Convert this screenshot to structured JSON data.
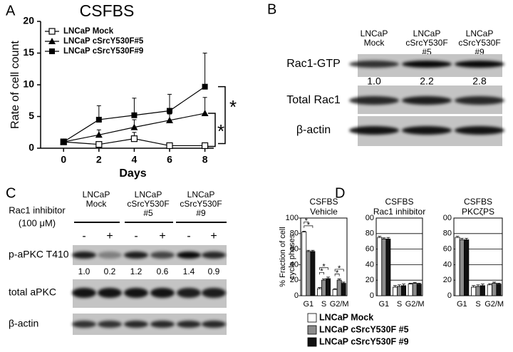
{
  "chart_data": [
    {
      "type": "line",
      "panel": "A",
      "title": "CSFBS",
      "xlabel": "Days",
      "ylabel": "Rate of cell count",
      "x": [
        0,
        2,
        4,
        6,
        8
      ],
      "xlim": [
        -1.3,
        8.5
      ],
      "xticks": [
        0,
        2,
        4,
        6,
        8
      ],
      "ylim": [
        0,
        20
      ],
      "yticks": [
        0,
        5,
        10,
        15,
        20
      ],
      "legend": "upper left",
      "series": [
        {
          "name": "LNCaP Mock",
          "color": "#000000",
          "marker": "open-square",
          "values": [
            1,
            0.6,
            1.5,
            0.4,
            0.4
          ],
          "errors": [
            0.1,
            0.3,
            1.0,
            0.2,
            0.2
          ]
        },
        {
          "name": "LNCaP cSrcY530F#5",
          "color": "#000000",
          "marker": "triangle",
          "values": [
            1,
            2.1,
            3.3,
            4.4,
            5.5
          ],
          "errors": [
            0.2,
            0.8,
            1.2,
            1.0,
            2.5
          ]
        },
        {
          "name": "LNCaP cSrcY530F#9",
          "color": "#000000",
          "marker": "filled-square",
          "values": [
            1,
            4.5,
            5.2,
            5.9,
            9.7
          ],
          "errors": [
            0.2,
            2.2,
            2.7,
            2.6,
            5.3
          ]
        }
      ],
      "annotations": [
        "*",
        "*"
      ]
    },
    {
      "type": "bar",
      "panel": "D",
      "title": "CSFBS",
      "subtitle": "Vehicle",
      "ylabel": [
        "% Fraction of cell",
        "cycle phases"
      ],
      "categories": [
        "G1",
        "S",
        "G2/M"
      ],
      "ylim": [
        0,
        100
      ],
      "yticks": [
        0,
        20,
        40,
        60,
        80,
        100
      ],
      "grid": false,
      "legend": "below",
      "series": [
        {
          "name": "LNCaP Mock",
          "color": "#ffffff",
          "values": [
            82,
            9,
            8
          ],
          "errors": [
            1,
            1.5,
            1
          ]
        },
        {
          "name": "LNCaP cSrcY530F #5",
          "color": "#8c8c8c",
          "values": [
            57,
            20,
            20
          ],
          "errors": [
            1.5,
            1.5,
            1.5
          ]
        },
        {
          "name": "LNCaP cSrcY530F #9",
          "color": "#111111",
          "values": [
            57,
            22,
            16
          ],
          "errors": [
            1.5,
            2,
            1.5
          ]
        }
      ],
      "annotations": [
        "*",
        "*",
        "*",
        "*",
        "*",
        "*"
      ]
    },
    {
      "type": "bar",
      "title": "CSFBS",
      "subtitle": "Rac1 inhibitor",
      "categories": [
        "G1",
        "S",
        "G2/M"
      ],
      "ylim": [
        0,
        100
      ],
      "yticks": [
        0,
        20,
        40,
        60,
        80,
        {
          "value": 100,
          "label": "00"
        }
      ],
      "grid": true,
      "series": [
        {
          "color": "#ffffff",
          "values": [
            75,
            11,
            15
          ],
          "errors": [
            1.5,
            2,
            1
          ]
        },
        {
          "color": "#8c8c8c",
          "values": [
            73,
            12,
            16
          ],
          "errors": [
            1.5,
            2,
            1
          ]
        },
        {
          "color": "#111111",
          "values": [
            73,
            13,
            15
          ],
          "errors": [
            2,
            2,
            1
          ]
        }
      ]
    },
    {
      "type": "bar",
      "title": "CSFBS",
      "subtitle": "PKCζPS",
      "categories": [
        "G1",
        "S",
        "G2/M"
      ],
      "ylim": [
        0,
        100
      ],
      "yticks": [
        0,
        20,
        40,
        60,
        80,
        {
          "value": 100,
          "label": "00"
        }
      ],
      "grid": true,
      "series": [
        {
          "color": "#ffffff",
          "values": [
            75,
            11,
            14
          ],
          "errors": [
            1.5,
            2,
            1.5
          ]
        },
        {
          "color": "#8c8c8c",
          "values": [
            72,
            12,
            16
          ],
          "errors": [
            2,
            2,
            1.5
          ]
        },
        {
          "color": "#111111",
          "values": [
            72,
            13,
            15
          ],
          "errors": [
            2,
            2,
            1
          ]
        }
      ]
    }
  ],
  "blots": [
    {
      "panel": "B",
      "columns": [
        [
          "LNCaP",
          "Mock"
        ],
        [
          "LNCaP",
          "cSrcY530F",
          "#5"
        ],
        [
          "LNCaP",
          "cSrcY530F",
          "#9"
        ]
      ],
      "rows": [
        "Rac1-GTP",
        "Total Rac1",
        "β-actin"
      ],
      "quantification": [
        "1.0",
        "2.2",
        "2.8"
      ]
    },
    {
      "panel": "C",
      "columns": [
        [
          "LNCaP",
          "Mock"
        ],
        [
          "LNCaP",
          "cSrcY530F",
          "#5"
        ],
        [
          "LNCaP",
          "cSrcY530F",
          "#9"
        ]
      ],
      "treatment": [
        "Rac1 inhibitor",
        "(100 μM)"
      ],
      "lanes": [
        "-",
        "+",
        "-",
        "+",
        "-",
        "+"
      ],
      "rows": [
        "p-aPKC T410",
        "total aPKC",
        "β-actin"
      ],
      "quantification": [
        "1.0",
        "0.2",
        "1.2",
        "0.6",
        "1.4",
        "0.9"
      ]
    }
  ]
}
